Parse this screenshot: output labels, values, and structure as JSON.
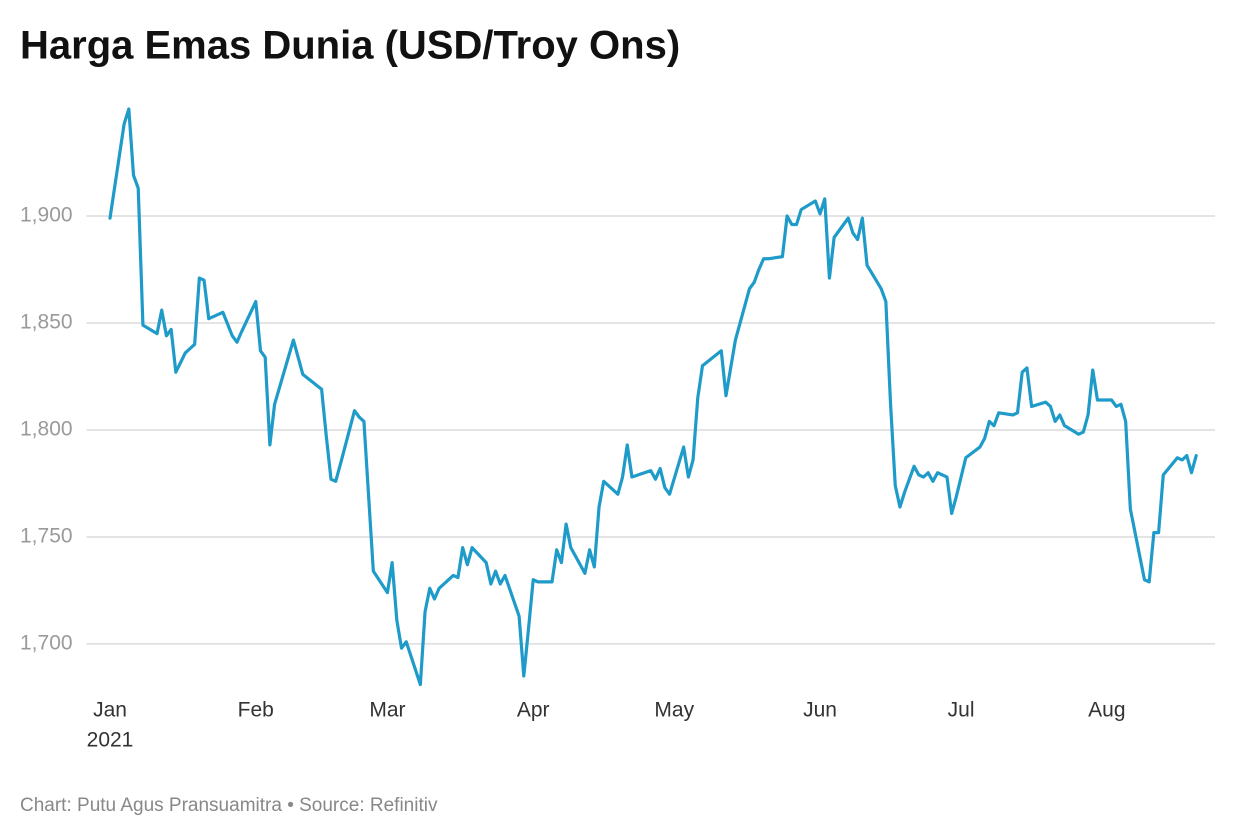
{
  "chart_data": {
    "type": "line",
    "title": "Harga Emas Dunia (USD/Troy Ons)",
    "footer": "Chart: Putu Agus Pransuamitra • Source: Refinitiv",
    "x_sublabel": "2021",
    "x": [
      0,
      3,
      4,
      5,
      6,
      7,
      10,
      11,
      12,
      13,
      14,
      16,
      18,
      19,
      20,
      21,
      24,
      26,
      27,
      28,
      31,
      32,
      33,
      34,
      35,
      39,
      41,
      45,
      46,
      47,
      48,
      49,
      52,
      53,
      54,
      56,
      59,
      60,
      61,
      62,
      63,
      66,
      67,
      68,
      69,
      70,
      73,
      74,
      75,
      76,
      77,
      80,
      81,
      82,
      83,
      84,
      87,
      88,
      89,
      90,
      91,
      94,
      95,
      96,
      97,
      98,
      101,
      102,
      103,
      104,
      105,
      108,
      109,
      110,
      111,
      115,
      116,
      117,
      118,
      119,
      122,
      123,
      124,
      125,
      126,
      130,
      131,
      133,
      136,
      137,
      138,
      139,
      140,
      143,
      144,
      145,
      146,
      147,
      150,
      151,
      152,
      153,
      154,
      157,
      158,
      159,
      160,
      161,
      164,
      165,
      166,
      167,
      168,
      169,
      171,
      172,
      173,
      174,
      175,
      176,
      178,
      179,
      180,
      181,
      182,
      185,
      186,
      187,
      188,
      189,
      192,
      193,
      194,
      195,
      196,
      199,
      200,
      201,
      202,
      203,
      206,
      207,
      208,
      209,
      210,
      213,
      214,
      215,
      216,
      217,
      220,
      221,
      222,
      223,
      224,
      227,
      228,
      229,
      230,
      231
    ],
    "series": [
      {
        "name": "Harga Emas",
        "color": "#1f9bc9",
        "values": [
          1899,
          1943,
          1950,
          1919,
          1913,
          1849,
          1845,
          1856,
          1844,
          1847,
          1827,
          1836,
          1840,
          1871,
          1870,
          1852,
          1855,
          1844,
          1841,
          1846,
          1860,
          1837,
          1834,
          1793,
          1812,
          1842,
          1826,
          1819,
          1797,
          1777,
          1776,
          1784,
          1809,
          1806,
          1804,
          1734,
          1724,
          1738,
          1711,
          1698,
          1701,
          1681,
          1715,
          1726,
          1721,
          1726,
          1732,
          1731,
          1745,
          1737,
          1745,
          1738,
          1728,
          1734,
          1728,
          1732,
          1713,
          1685,
          1707,
          1730,
          1729,
          1729,
          1744,
          1738,
          1756,
          1745,
          1733,
          1744,
          1736,
          1764,
          1776,
          1770,
          1778,
          1793,
          1778,
          1781,
          1777,
          1782,
          1773,
          1770,
          1792,
          1778,
          1786,
          1815,
          1830,
          1837,
          1816,
          1842,
          1866,
          1869,
          1875,
          1880,
          1880,
          1881,
          1900,
          1896,
          1896,
          1903,
          1907,
          1901,
          1908,
          1871,
          1890,
          1899,
          1892,
          1889,
          1899,
          1877,
          1866,
          1860,
          1812,
          1774,
          1764,
          1771,
          1783,
          1779,
          1778,
          1780,
          1776,
          1780,
          1778,
          1761,
          1769,
          1778,
          1787,
          1792,
          1796,
          1804,
          1802,
          1808,
          1807,
          1808,
          1827,
          1829,
          1811,
          1813,
          1811,
          1804,
          1807,
          1802,
          1798,
          1799,
          1807,
          1828,
          1814,
          1814,
          1811,
          1812,
          1804,
          1763,
          1730,
          1729,
          1752,
          1752,
          1779,
          1787,
          1786,
          1788,
          1780,
          1788
        ]
      }
    ],
    "xlim": [
      -5,
      235
    ],
    "xticks": [
      {
        "value": 0,
        "label": "Jan"
      },
      {
        "value": 31,
        "label": "Feb"
      },
      {
        "value": 59,
        "label": "Mar"
      },
      {
        "value": 90,
        "label": "Apr"
      },
      {
        "value": 120,
        "label": "May"
      },
      {
        "value": 151,
        "label": "Jun"
      },
      {
        "value": 181,
        "label": "Jul"
      },
      {
        "value": 212,
        "label": "Aug"
      }
    ],
    "ylim": [
      1678,
      1955
    ],
    "yticks": [
      {
        "value": 1700,
        "label": "1,700"
      },
      {
        "value": 1750,
        "label": "1,750"
      },
      {
        "value": 1800,
        "label": "1,800"
      },
      {
        "value": 1850,
        "label": "1,850"
      },
      {
        "value": 1900,
        "label": "1,900"
      }
    ],
    "grid": true
  }
}
